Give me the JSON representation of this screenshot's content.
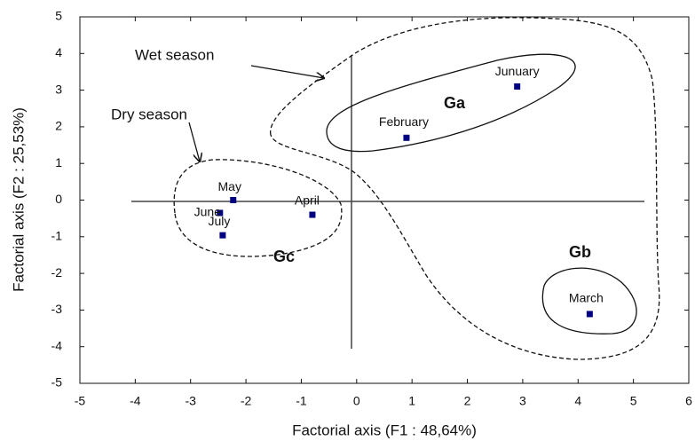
{
  "chart_data": {
    "type": "scatter",
    "xlabel": "Factorial axis (F1 : 48,64%)",
    "ylabel": "Factorial axis (F2 : 25,53%)",
    "x": [
      2.9,
      0.9,
      -2.23,
      -2.47,
      -2.42,
      -0.8,
      4.21
    ],
    "series": [
      {
        "color": "#000080",
        "values": [
          3.1,
          1.7,
          0.0,
          -0.35,
          -0.96,
          -0.4,
          -3.11
        ]
      }
    ],
    "point_labels": [
      "Junuary",
      "February",
      "May",
      "June",
      "July",
      "April",
      "March"
    ],
    "annotations": [
      "Wet season",
      "Dry season",
      "Ga",
      "Gb",
      "Gc"
    ],
    "xlim": [
      -5,
      6
    ],
    "xticks": [
      -5,
      -4,
      -3,
      -2,
      -1,
      0,
      1,
      2,
      3,
      4,
      5,
      6
    ],
    "ylim": [
      -5,
      5
    ],
    "yticks": [
      -5,
      -4,
      -3,
      -2,
      -1,
      0,
      1,
      2,
      3,
      4,
      5
    ]
  }
}
